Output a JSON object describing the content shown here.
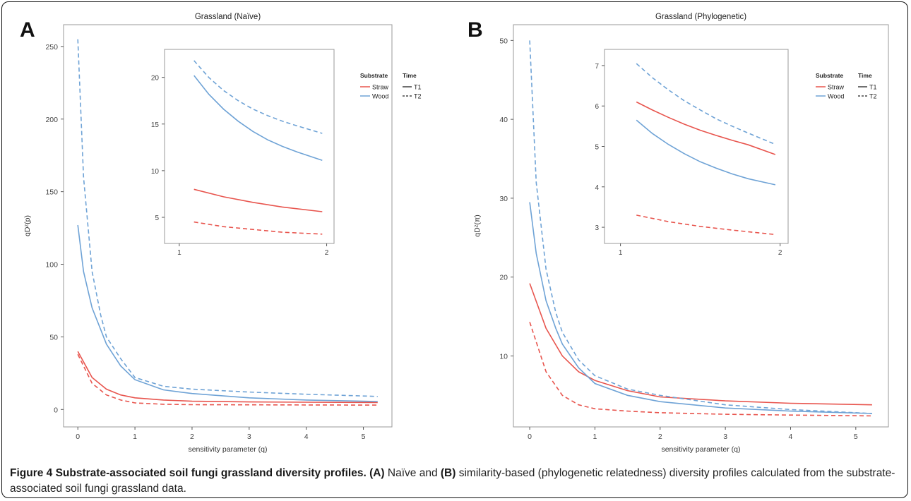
{
  "figure": {
    "caption_title": "Figure 4 Substrate-associated soil fungi grassland diversity profiles.",
    "caption_a_tag": "(A)",
    "caption_mid": " Naïve and ",
    "caption_b_tag": "(B)",
    "caption_rest": " similarity-based (phylogenetic relatedness) diversity profiles calculated from the substrate-associated soil fungi grassland data."
  },
  "colors": {
    "straw": "#e8554e",
    "wood": "#6fa3d6",
    "axis": "#333333"
  },
  "chart_data": [
    {
      "type": "line",
      "panel_label": "A",
      "title": "Grassland (Naïve)",
      "xlabel": "sensitivity parameter (q)",
      "ylabel": "qDᶻ(p)",
      "xlim": [
        -0.25,
        5.5
      ],
      "ylim": [
        -12,
        265
      ],
      "xticks": [
        0,
        1,
        2,
        3,
        4,
        5
      ],
      "yticks": [
        0,
        50,
        100,
        150,
        200,
        250
      ],
      "legend": {
        "position": "top-right",
        "substrate_title": "Substrate",
        "time_title": "Time",
        "substrate": [
          "Straw",
          "Wood"
        ],
        "time": [
          "T1",
          "T2"
        ]
      },
      "series": [
        {
          "name": "Straw T1",
          "substrate": "Straw",
          "time": "T1",
          "x": [
            0,
            0.25,
            0.5,
            0.75,
            1,
            1.5,
            2,
            3,
            4,
            5.25
          ],
          "y": [
            40,
            22,
            14,
            10,
            8,
            6.5,
            5.7,
            5.2,
            5.0,
            4.8
          ]
        },
        {
          "name": "Straw T2",
          "substrate": "Straw",
          "time": "T2",
          "x": [
            0,
            0.25,
            0.5,
            0.75,
            1,
            1.5,
            2,
            3,
            4,
            5.25
          ],
          "y": [
            38,
            18,
            10,
            6.5,
            4.5,
            3.6,
            3.3,
            3.2,
            3.1,
            3.0
          ]
        },
        {
          "name": "Wood T1",
          "substrate": "Wood",
          "time": "T1",
          "x": [
            0,
            0.1,
            0.25,
            0.4,
            0.5,
            0.75,
            1,
            1.5,
            2,
            3,
            4,
            5.25
          ],
          "y": [
            127,
            95,
            70,
            55,
            45,
            30,
            20.5,
            13.5,
            11,
            8,
            6.5,
            5.5
          ]
        },
        {
          "name": "Wood T2",
          "substrate": "Wood",
          "time": "T2",
          "x": [
            0,
            0.1,
            0.25,
            0.4,
            0.5,
            0.75,
            1,
            1.5,
            2,
            3,
            4,
            5.25
          ],
          "y": [
            255,
            160,
            95,
            65,
            50,
            35,
            22,
            16,
            14,
            12,
            10.5,
            9
          ]
        }
      ],
      "inset": {
        "xlim": [
          0.9,
          2.05
        ],
        "ylim": [
          2.2,
          23
        ],
        "xticks": [
          1,
          2
        ],
        "yticks": [
          5,
          10,
          15,
          20
        ],
        "series": [
          {
            "name": "Straw T1",
            "x": [
              1.1,
              1.3,
              1.5,
              1.7,
              1.97
            ],
            "y": [
              8.0,
              7.2,
              6.6,
              6.1,
              5.6
            ]
          },
          {
            "name": "Straw T2",
            "x": [
              1.1,
              1.3,
              1.5,
              1.7,
              1.97
            ],
            "y": [
              4.5,
              4.0,
              3.7,
              3.4,
              3.2
            ]
          },
          {
            "name": "Wood T1",
            "x": [
              1.1,
              1.2,
              1.3,
              1.4,
              1.5,
              1.6,
              1.7,
              1.8,
              1.97
            ],
            "y": [
              20.2,
              18.2,
              16.6,
              15.3,
              14.2,
              13.3,
              12.6,
              12.0,
              11.1
            ]
          },
          {
            "name": "Wood T2",
            "x": [
              1.1,
              1.2,
              1.3,
              1.4,
              1.5,
              1.6,
              1.7,
              1.8,
              1.97
            ],
            "y": [
              21.8,
              20.0,
              18.6,
              17.5,
              16.6,
              15.9,
              15.3,
              14.8,
              14.0
            ]
          }
        ]
      }
    },
    {
      "type": "line",
      "panel_label": "B",
      "title": "Grassland (Phylogenetic)",
      "xlabel": "sensitivity parameter (q)",
      "ylabel": "qDᶻ(π)",
      "xlim": [
        -0.25,
        5.5
      ],
      "ylim": [
        1,
        52
      ],
      "xticks": [
        0,
        1,
        2,
        3,
        4,
        5
      ],
      "yticks": [
        10,
        20,
        30,
        40,
        50
      ],
      "legend": {
        "position": "top-right",
        "substrate_title": "Substrate",
        "time_title": "Time",
        "substrate": [
          "Straw",
          "Wood"
        ],
        "time": [
          "T1",
          "T2"
        ]
      },
      "series": [
        {
          "name": "Straw T1",
          "substrate": "Straw",
          "time": "T1",
          "x": [
            0,
            0.25,
            0.5,
            0.75,
            1,
            1.5,
            2,
            3,
            4,
            5.25
          ],
          "y": [
            19.2,
            13.5,
            10,
            8,
            6.9,
            5.6,
            4.8,
            4.3,
            4.0,
            3.8
          ]
        },
        {
          "name": "Straw T2",
          "substrate": "Straw",
          "time": "T2",
          "x": [
            0,
            0.25,
            0.5,
            0.75,
            1,
            1.5,
            2,
            3,
            4,
            5.25
          ],
          "y": [
            14.3,
            8,
            5,
            3.8,
            3.3,
            3.0,
            2.8,
            2.6,
            2.5,
            2.4
          ]
        },
        {
          "name": "Wood T1",
          "substrate": "Wood",
          "time": "T1",
          "x": [
            0,
            0.1,
            0.25,
            0.4,
            0.5,
            0.75,
            1,
            1.5,
            2,
            3,
            4,
            5.25
          ],
          "y": [
            29.5,
            23,
            17,
            13.5,
            11.5,
            8.5,
            6.5,
            5.0,
            4.2,
            3.4,
            3.0,
            2.7
          ]
        },
        {
          "name": "Wood T2",
          "substrate": "Wood",
          "time": "T2",
          "x": [
            0,
            0.1,
            0.25,
            0.4,
            0.5,
            0.75,
            1,
            1.5,
            2,
            3,
            4,
            5.25
          ],
          "y": [
            50,
            32,
            21,
            15.5,
            13,
            9.5,
            7.5,
            5.8,
            5.0,
            3.8,
            3.2,
            2.7
          ]
        }
      ],
      "inset": {
        "xlim": [
          0.9,
          2.05
        ],
        "ylim": [
          2.6,
          7.4
        ],
        "xticks": [
          1,
          2
        ],
        "yticks": [
          3,
          4,
          5,
          6,
          7
        ],
        "series": [
          {
            "name": "Straw T1",
            "x": [
              1.1,
              1.2,
              1.3,
              1.4,
              1.5,
              1.6,
              1.7,
              1.8,
              1.97
            ],
            "y": [
              6.1,
              5.9,
              5.72,
              5.55,
              5.4,
              5.27,
              5.15,
              5.04,
              4.8
            ]
          },
          {
            "name": "Straw T2",
            "x": [
              1.1,
              1.3,
              1.5,
              1.7,
              1.97
            ],
            "y": [
              3.3,
              3.14,
              3.02,
              2.93,
              2.82
            ]
          },
          {
            "name": "Wood T1",
            "x": [
              1.1,
              1.2,
              1.3,
              1.4,
              1.5,
              1.6,
              1.7,
              1.8,
              1.97
            ],
            "y": [
              5.65,
              5.32,
              5.05,
              4.82,
              4.62,
              4.46,
              4.32,
              4.2,
              4.05
            ]
          },
          {
            "name": "Wood T2",
            "x": [
              1.1,
              1.2,
              1.3,
              1.4,
              1.5,
              1.6,
              1.7,
              1.8,
              1.97
            ],
            "y": [
              7.05,
              6.7,
              6.4,
              6.13,
              5.9,
              5.68,
              5.5,
              5.33,
              5.05
            ]
          }
        ]
      }
    }
  ]
}
